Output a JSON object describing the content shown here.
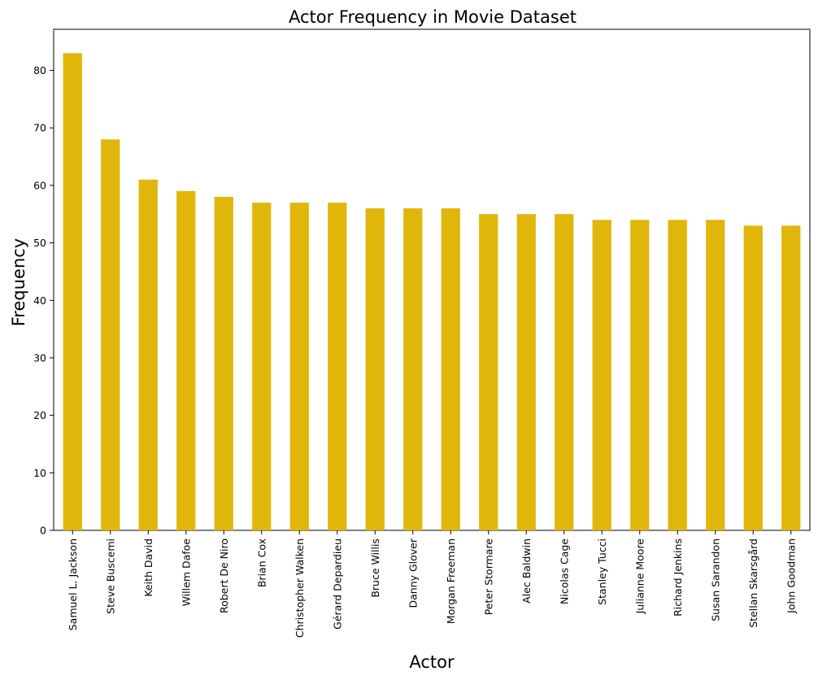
{
  "chart_data": {
    "type": "bar",
    "title": "Actor Frequency in Movie Dataset",
    "xlabel": "Actor",
    "ylabel": "Frequency",
    "categories": [
      "Samuel L. Jackson",
      "Steve Buscemi",
      "Keith David",
      "Willem Dafoe",
      "Robert De Niro",
      "Brian Cox",
      "Christopher Walken",
      "Gérard Depardieu",
      "Bruce Willis",
      "Danny Glover",
      "Morgan Freeman",
      "Peter Stormare",
      "Alec Baldwin",
      "Nicolas Cage",
      "Stanley Tucci",
      "Julianne Moore",
      "Richard Jenkins",
      "Susan Sarandon",
      "Stellan Skarsgård",
      "John Goodman"
    ],
    "values": [
      83,
      68,
      61,
      59,
      58,
      57,
      57,
      57,
      56,
      56,
      56,
      55,
      55,
      55,
      54,
      54,
      54,
      54,
      53,
      53
    ],
    "ylim": [
      0,
      87.15
    ],
    "yticks": [
      0,
      10,
      20,
      30,
      40,
      50,
      60,
      70,
      80
    ],
    "bar_color": "#e0b60a",
    "grid": false,
    "legend": "none"
  }
}
